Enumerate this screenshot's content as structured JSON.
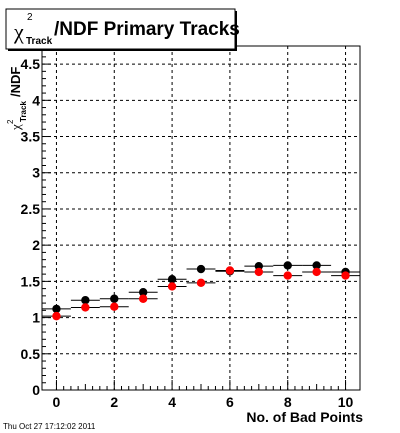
{
  "title_box": {
    "chi": "χ",
    "sup": "2",
    "sub": "Track",
    "rest": "/NDF Primary Tracks"
  },
  "ylabel": {
    "chi": "χ",
    "sup": "2",
    "sub": "Track",
    "rest": "/NDF"
  },
  "xlabel": "No. of Bad Points",
  "timestamp": "Thu Oct 27 17:12:02 2011",
  "chart_data": {
    "type": "scatter",
    "title": "χ2Track/NDF Primary Tracks",
    "xlabel": "No. of Bad Points",
    "ylabel": "χ2Track/NDF",
    "xlim": [
      -0.5,
      10.5
    ],
    "ylim": [
      0,
      4.75
    ],
    "grid": true,
    "x_ticks": [
      0,
      2,
      4,
      6,
      8,
      10
    ],
    "y_ticks": [
      0,
      0.5,
      1,
      1.5,
      2,
      2.5,
      3,
      3.5,
      4,
      4.5
    ],
    "x_tick_labels": [
      "0",
      "2",
      "4",
      "6",
      "8",
      "10"
    ],
    "y_tick_labels": [
      "0",
      "0.5",
      "1",
      "1.5",
      "2",
      "2.5",
      "3",
      "3.5",
      "4",
      "4.5"
    ],
    "x_error": 0.5,
    "series": [
      {
        "color": "#000000",
        "x": [
          0,
          1,
          2,
          3,
          4,
          5,
          6,
          7,
          8,
          9,
          10
        ],
        "values": [
          1.12,
          1.24,
          1.26,
          1.35,
          1.53,
          1.67,
          1.64,
          1.71,
          1.72,
          1.72,
          1.63
        ]
      },
      {
        "color": "#ff0000",
        "x": [
          0,
          1,
          2,
          3,
          4,
          5,
          6,
          7,
          8,
          9,
          10
        ],
        "values": [
          1.02,
          1.14,
          1.15,
          1.26,
          1.43,
          1.48,
          1.65,
          1.63,
          1.58,
          1.63,
          1.58
        ]
      }
    ]
  }
}
